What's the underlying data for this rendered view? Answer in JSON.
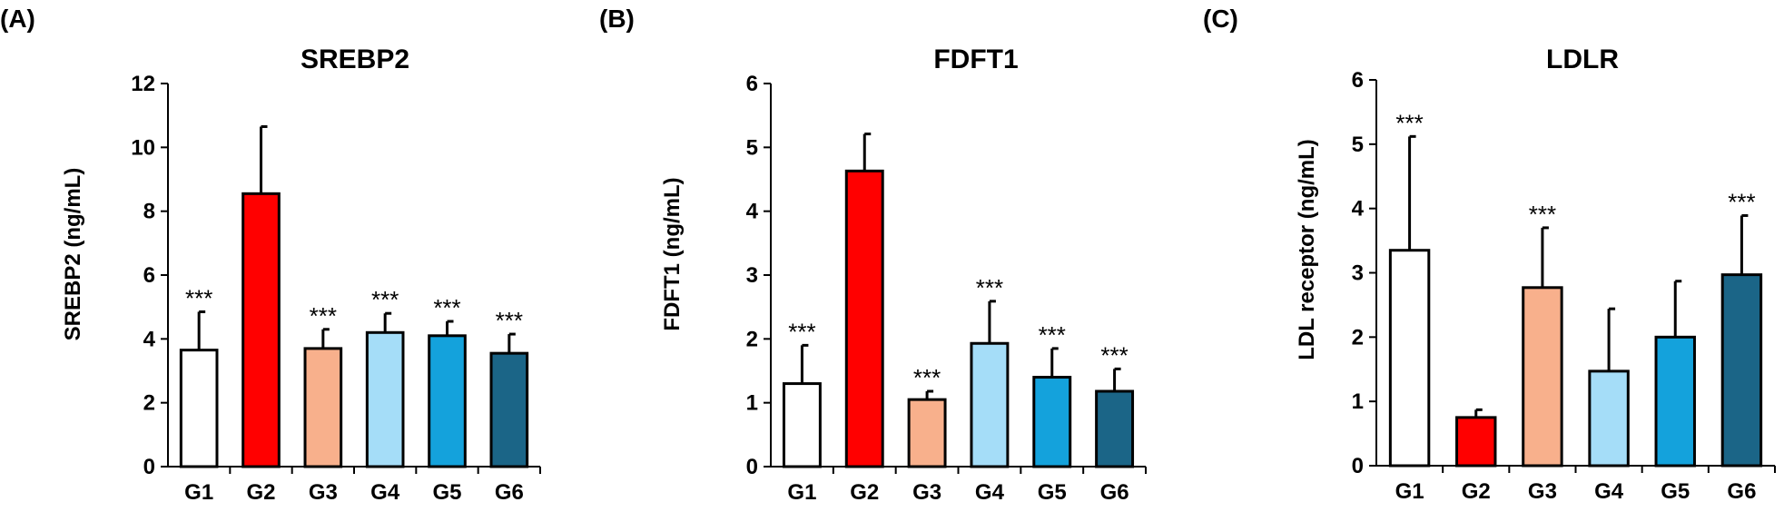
{
  "chart_data": [
    {
      "panel": "(A)",
      "type": "bar",
      "title": "SREBP2",
      "ylabel": "SREBP2 (ng/mL)",
      "xlabel": "",
      "ylim": [
        0,
        12
      ],
      "yticks": [
        0,
        2,
        4,
        6,
        8,
        10,
        12
      ],
      "categories": [
        "G1",
        "G2",
        "G3",
        "G4",
        "G5",
        "G6"
      ],
      "values": [
        3.65,
        8.55,
        3.7,
        4.2,
        4.1,
        3.55
      ],
      "errors": [
        1.2,
        2.1,
        0.6,
        0.6,
        0.45,
        0.6
      ],
      "significance": [
        "***",
        "",
        "***",
        "***",
        "***",
        "***"
      ],
      "colors": [
        "#ffffff",
        "#ff0000",
        "#f8b08c",
        "#a5ddf8",
        "#14a2dc",
        "#1b6587"
      ]
    },
    {
      "panel": "(B)",
      "type": "bar",
      "title": "FDFT1",
      "ylabel": "FDFT1 (ng/mL)",
      "xlabel": "",
      "ylim": [
        0,
        6
      ],
      "yticks": [
        0,
        1,
        2,
        3,
        4,
        5,
        6
      ],
      "categories": [
        "G1",
        "G2",
        "G3",
        "G4",
        "G5",
        "G6"
      ],
      "values": [
        1.3,
        4.63,
        1.05,
        1.93,
        1.4,
        1.18
      ],
      "errors": [
        0.6,
        0.58,
        0.13,
        0.66,
        0.45,
        0.35
      ],
      "significance": [
        "***",
        "",
        "***",
        "***",
        "***",
        "***"
      ],
      "colors": [
        "#ffffff",
        "#ff0000",
        "#f8b08c",
        "#a5ddf8",
        "#14a2dc",
        "#1b6587"
      ]
    },
    {
      "panel": "(C)",
      "type": "bar",
      "title": "LDLR",
      "ylabel": "LDL receptor (ng/mL)",
      "xlabel": "",
      "ylim": [
        0,
        6
      ],
      "yticks": [
        0,
        1,
        2,
        3,
        4,
        5,
        6
      ],
      "categories": [
        "G1",
        "G2",
        "G3",
        "G4",
        "G5",
        "G6"
      ],
      "values": [
        3.35,
        0.75,
        2.77,
        1.47,
        2.0,
        2.97
      ],
      "errors": [
        1.77,
        0.12,
        0.93,
        0.97,
        0.87,
        0.92
      ],
      "significance": [
        "***",
        "",
        "***",
        "",
        "",
        "***"
      ],
      "colors": [
        "#ffffff",
        "#ff0000",
        "#f8b08c",
        "#a5ddf8",
        "#14a2dc",
        "#1b6587"
      ]
    }
  ]
}
